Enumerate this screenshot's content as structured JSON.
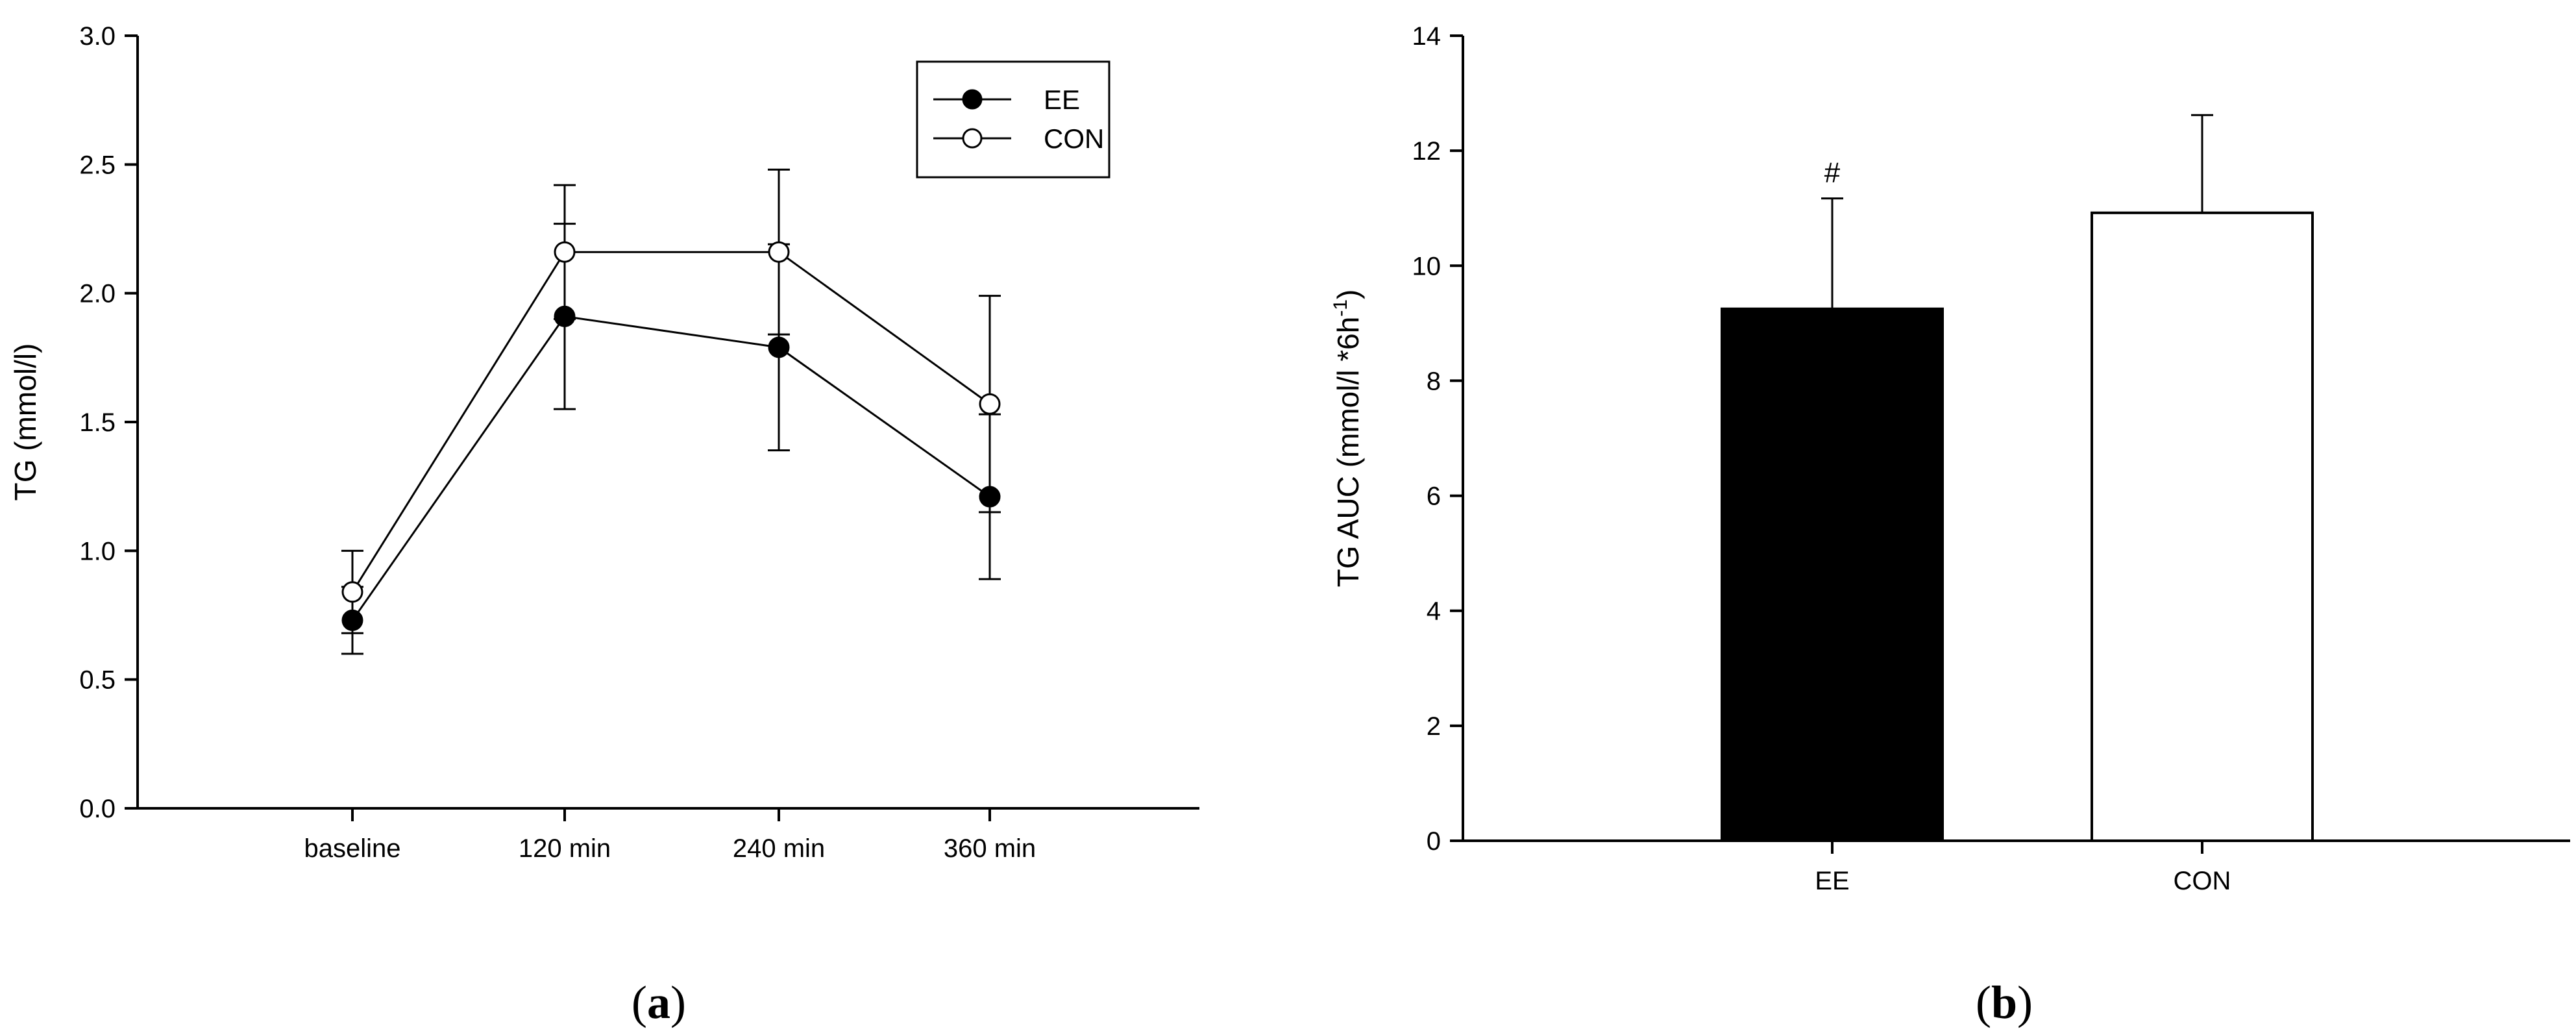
{
  "chart_data": [
    {
      "type": "line",
      "panel_label_prefix": "(",
      "panel_label_letter": "a",
      "panel_label_suffix": ")",
      "ylabel": "TG (mmol/l)",
      "xlabel": "",
      "categories": [
        "baseline",
        "120 min",
        "240 min",
        "360 min"
      ],
      "ylim": [
        0,
        3.0
      ],
      "yticks": [
        0,
        0.5,
        1.0,
        1.5,
        2.0,
        2.5,
        3.0
      ],
      "ytick_labels": [
        "0.0",
        "0.5",
        "1.0",
        "1.5",
        "2.0",
        "2.5",
        "3.0"
      ],
      "grid": false,
      "legend_position": "top-right",
      "series": [
        {
          "name": "EE",
          "marker": "filled-circle",
          "values": [
            0.73,
            1.91,
            1.79,
            1.21
          ],
          "err": [
            0.13,
            0.36,
            0.4,
            0.32
          ]
        },
        {
          "name": "CON",
          "marker": "open-circle",
          "values": [
            0.84,
            2.16,
            2.16,
            1.57
          ],
          "err": [
            0.16,
            0.26,
            0.32,
            0.42
          ]
        }
      ]
    },
    {
      "type": "bar",
      "panel_label_prefix": "(",
      "panel_label_letter": "b",
      "panel_label_suffix": ")",
      "ylabel": "TG AUC (mmol/l *6h",
      "ylabel_sup": "-1",
      "ylabel_close": ")",
      "xlabel": "",
      "categories": [
        "EE",
        "CON"
      ],
      "values": [
        9.25,
        10.92
      ],
      "err": [
        1.92,
        1.7
      ],
      "fills": [
        "#000000",
        "#ffffff"
      ],
      "annotations": [
        "#",
        ""
      ],
      "ylim": [
        0,
        14
      ],
      "yticks": [
        0,
        2,
        4,
        6,
        8,
        10,
        12,
        14
      ],
      "ytick_labels": [
        "0",
        "2",
        "4",
        "6",
        "8",
        "10",
        "12",
        "14"
      ],
      "grid": false
    }
  ]
}
